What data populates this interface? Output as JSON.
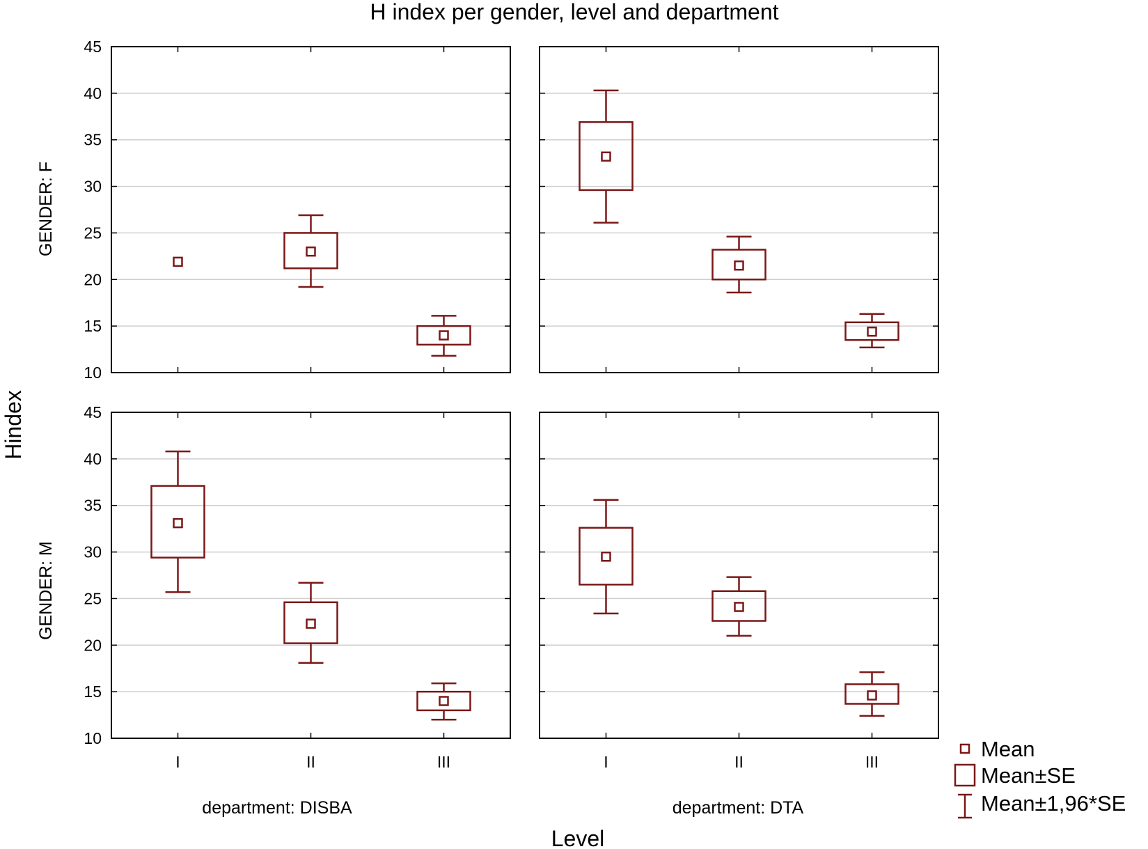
{
  "colors": {
    "mark": "#7a1818",
    "grid": "#cfcfcf",
    "frame": "#000000"
  },
  "chart_data": {
    "type": "box",
    "title": "H index per gender, level and department",
    "xlabel": "Level",
    "ylabel": "Hindex",
    "ylim": [
      10,
      45
    ],
    "yticks": [
      10,
      15,
      20,
      25,
      30,
      35,
      40,
      45
    ],
    "categories": [
      "I",
      "II",
      "III"
    ],
    "grid": true,
    "legend_position": "bottom-right",
    "legend": [
      "Mean",
      "Mean±SE",
      "Mean±1,96*SE"
    ],
    "rows": [
      "GENDER: F",
      "GENDER: M"
    ],
    "columns": [
      "department: DISBA",
      "department: DTA"
    ],
    "panels": [
      {
        "row": "GENDER: F",
        "column": "department: DISBA",
        "groups": [
          {
            "level": "I",
            "mean": 21.9,
            "se_low": 21.9,
            "se_high": 21.9,
            "ci_low": 21.9,
            "ci_high": 21.9
          },
          {
            "level": "II",
            "mean": 23.0,
            "se_low": 21.2,
            "se_high": 25.0,
            "ci_low": 19.2,
            "ci_high": 26.9
          },
          {
            "level": "III",
            "mean": 14.0,
            "se_low": 13.0,
            "se_high": 15.0,
            "ci_low": 11.8,
            "ci_high": 16.1
          }
        ]
      },
      {
        "row": "GENDER: F",
        "column": "department: DTA",
        "groups": [
          {
            "level": "I",
            "mean": 33.2,
            "se_low": 29.6,
            "se_high": 36.9,
            "ci_low": 26.1,
            "ci_high": 40.3
          },
          {
            "level": "II",
            "mean": 21.5,
            "se_low": 20.0,
            "se_high": 23.2,
            "ci_low": 18.6,
            "ci_high": 24.6
          },
          {
            "level": "III",
            "mean": 14.4,
            "se_low": 13.5,
            "se_high": 15.4,
            "ci_low": 12.7,
            "ci_high": 16.3
          }
        ]
      },
      {
        "row": "GENDER: M",
        "column": "department: DISBA",
        "groups": [
          {
            "level": "I",
            "mean": 33.1,
            "se_low": 29.4,
            "se_high": 37.1,
            "ci_low": 25.7,
            "ci_high": 40.8
          },
          {
            "level": "II",
            "mean": 22.3,
            "se_low": 20.2,
            "se_high": 24.6,
            "ci_low": 18.1,
            "ci_high": 26.7
          },
          {
            "level": "III",
            "mean": 14.0,
            "se_low": 13.0,
            "se_high": 15.0,
            "ci_low": 12.0,
            "ci_high": 15.9
          }
        ]
      },
      {
        "row": "GENDER: M",
        "column": "department: DTA",
        "groups": [
          {
            "level": "I",
            "mean": 29.5,
            "se_low": 26.5,
            "se_high": 32.6,
            "ci_low": 23.4,
            "ci_high": 35.6
          },
          {
            "level": "II",
            "mean": 24.1,
            "se_low": 22.6,
            "se_high": 25.8,
            "ci_low": 21.0,
            "ci_high": 27.3
          },
          {
            "level": "III",
            "mean": 14.6,
            "se_low": 13.7,
            "se_high": 15.8,
            "ci_low": 12.4,
            "ci_high": 17.1
          }
        ]
      }
    ]
  }
}
